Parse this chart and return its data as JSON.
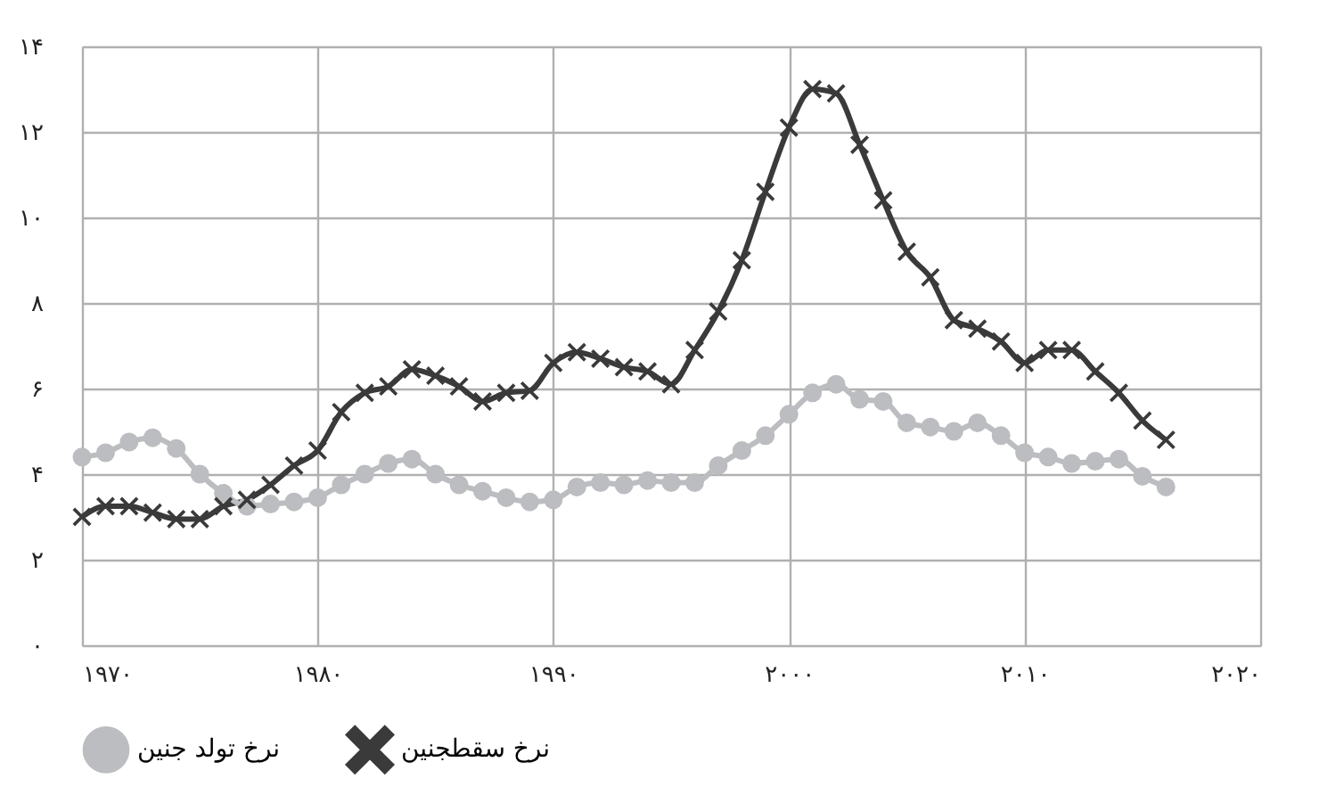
{
  "chart_data": {
    "type": "line",
    "x": [
      1970,
      1971,
      1972,
      1973,
      1974,
      1975,
      1976,
      1977,
      1978,
      1979,
      1980,
      1981,
      1982,
      1983,
      1984,
      1985,
      1986,
      1987,
      1988,
      1989,
      1990,
      1991,
      1992,
      1993,
      1994,
      1995,
      1996,
      1997,
      1998,
      1999,
      2000,
      2001,
      2002,
      2003,
      2004,
      2005,
      2006,
      2007,
      2008,
      2009,
      2010,
      2011,
      2012,
      2013,
      2014,
      2015,
      2016
    ],
    "series": [
      {
        "name": "نرخ سقطجنین",
        "color": "#3a3a3a",
        "marker": "cross",
        "values": [
          3.0,
          3.25,
          3.25,
          3.1,
          2.95,
          2.95,
          3.25,
          3.4,
          3.75,
          4.2,
          4.55,
          5.45,
          5.9,
          6.05,
          6.45,
          6.3,
          6.05,
          5.7,
          5.9,
          5.95,
          6.6,
          6.85,
          6.7,
          6.5,
          6.4,
          6.1,
          6.9,
          7.8,
          9.0,
          10.6,
          12.1,
          13.0,
          12.9,
          11.7,
          10.4,
          9.2,
          8.6,
          7.6,
          7.4,
          7.1,
          6.6,
          6.9,
          6.9,
          6.4,
          5.9,
          5.25,
          4.8
        ]
      },
      {
        "name": "نرخ تولد جنین",
        "color": "#bcbdc0",
        "marker": "circle",
        "values": [
          4.4,
          4.5,
          4.75,
          4.85,
          4.6,
          4.0,
          3.55,
          3.25,
          3.3,
          3.35,
          3.45,
          3.75,
          4.0,
          4.25,
          4.35,
          4.0,
          3.75,
          3.6,
          3.45,
          3.35,
          3.4,
          3.7,
          3.8,
          3.75,
          3.85,
          3.8,
          3.8,
          4.2,
          4.55,
          4.9,
          5.4,
          5.9,
          6.1,
          5.75,
          5.7,
          5.2,
          5.1,
          5.0,
          5.2,
          4.9,
          4.5,
          4.4,
          4.25,
          4.3,
          4.35,
          3.95,
          3.7
        ]
      }
    ],
    "xlim": [
      1970,
      2020
    ],
    "xticks": [
      {
        "value": 1970,
        "label": "۱۹۷۰"
      },
      {
        "value": 1980,
        "label": "۱۹۸۰"
      },
      {
        "value": 1990,
        "label": "۱۹۹۰"
      },
      {
        "value": 2000,
        "label": "۲۰۰۰"
      },
      {
        "value": 2010,
        "label": "۲۰۱۰"
      },
      {
        "value": 2020,
        "label": "۲۰۲۰"
      }
    ],
    "ylim": [
      0,
      14
    ],
    "yticks": [
      {
        "value": 0,
        "label": "۰"
      },
      {
        "value": 2,
        "label": "۲"
      },
      {
        "value": 4,
        "label": "۴"
      },
      {
        "value": 6,
        "label": "۶"
      },
      {
        "value": 8,
        "label": "۸"
      },
      {
        "value": 10,
        "label": "۱۰"
      },
      {
        "value": 12,
        "label": "۱۲"
      },
      {
        "value": 14,
        "label": "۱۴"
      }
    ],
    "grid": true,
    "legend": "bottom",
    "line_style": "solid"
  }
}
